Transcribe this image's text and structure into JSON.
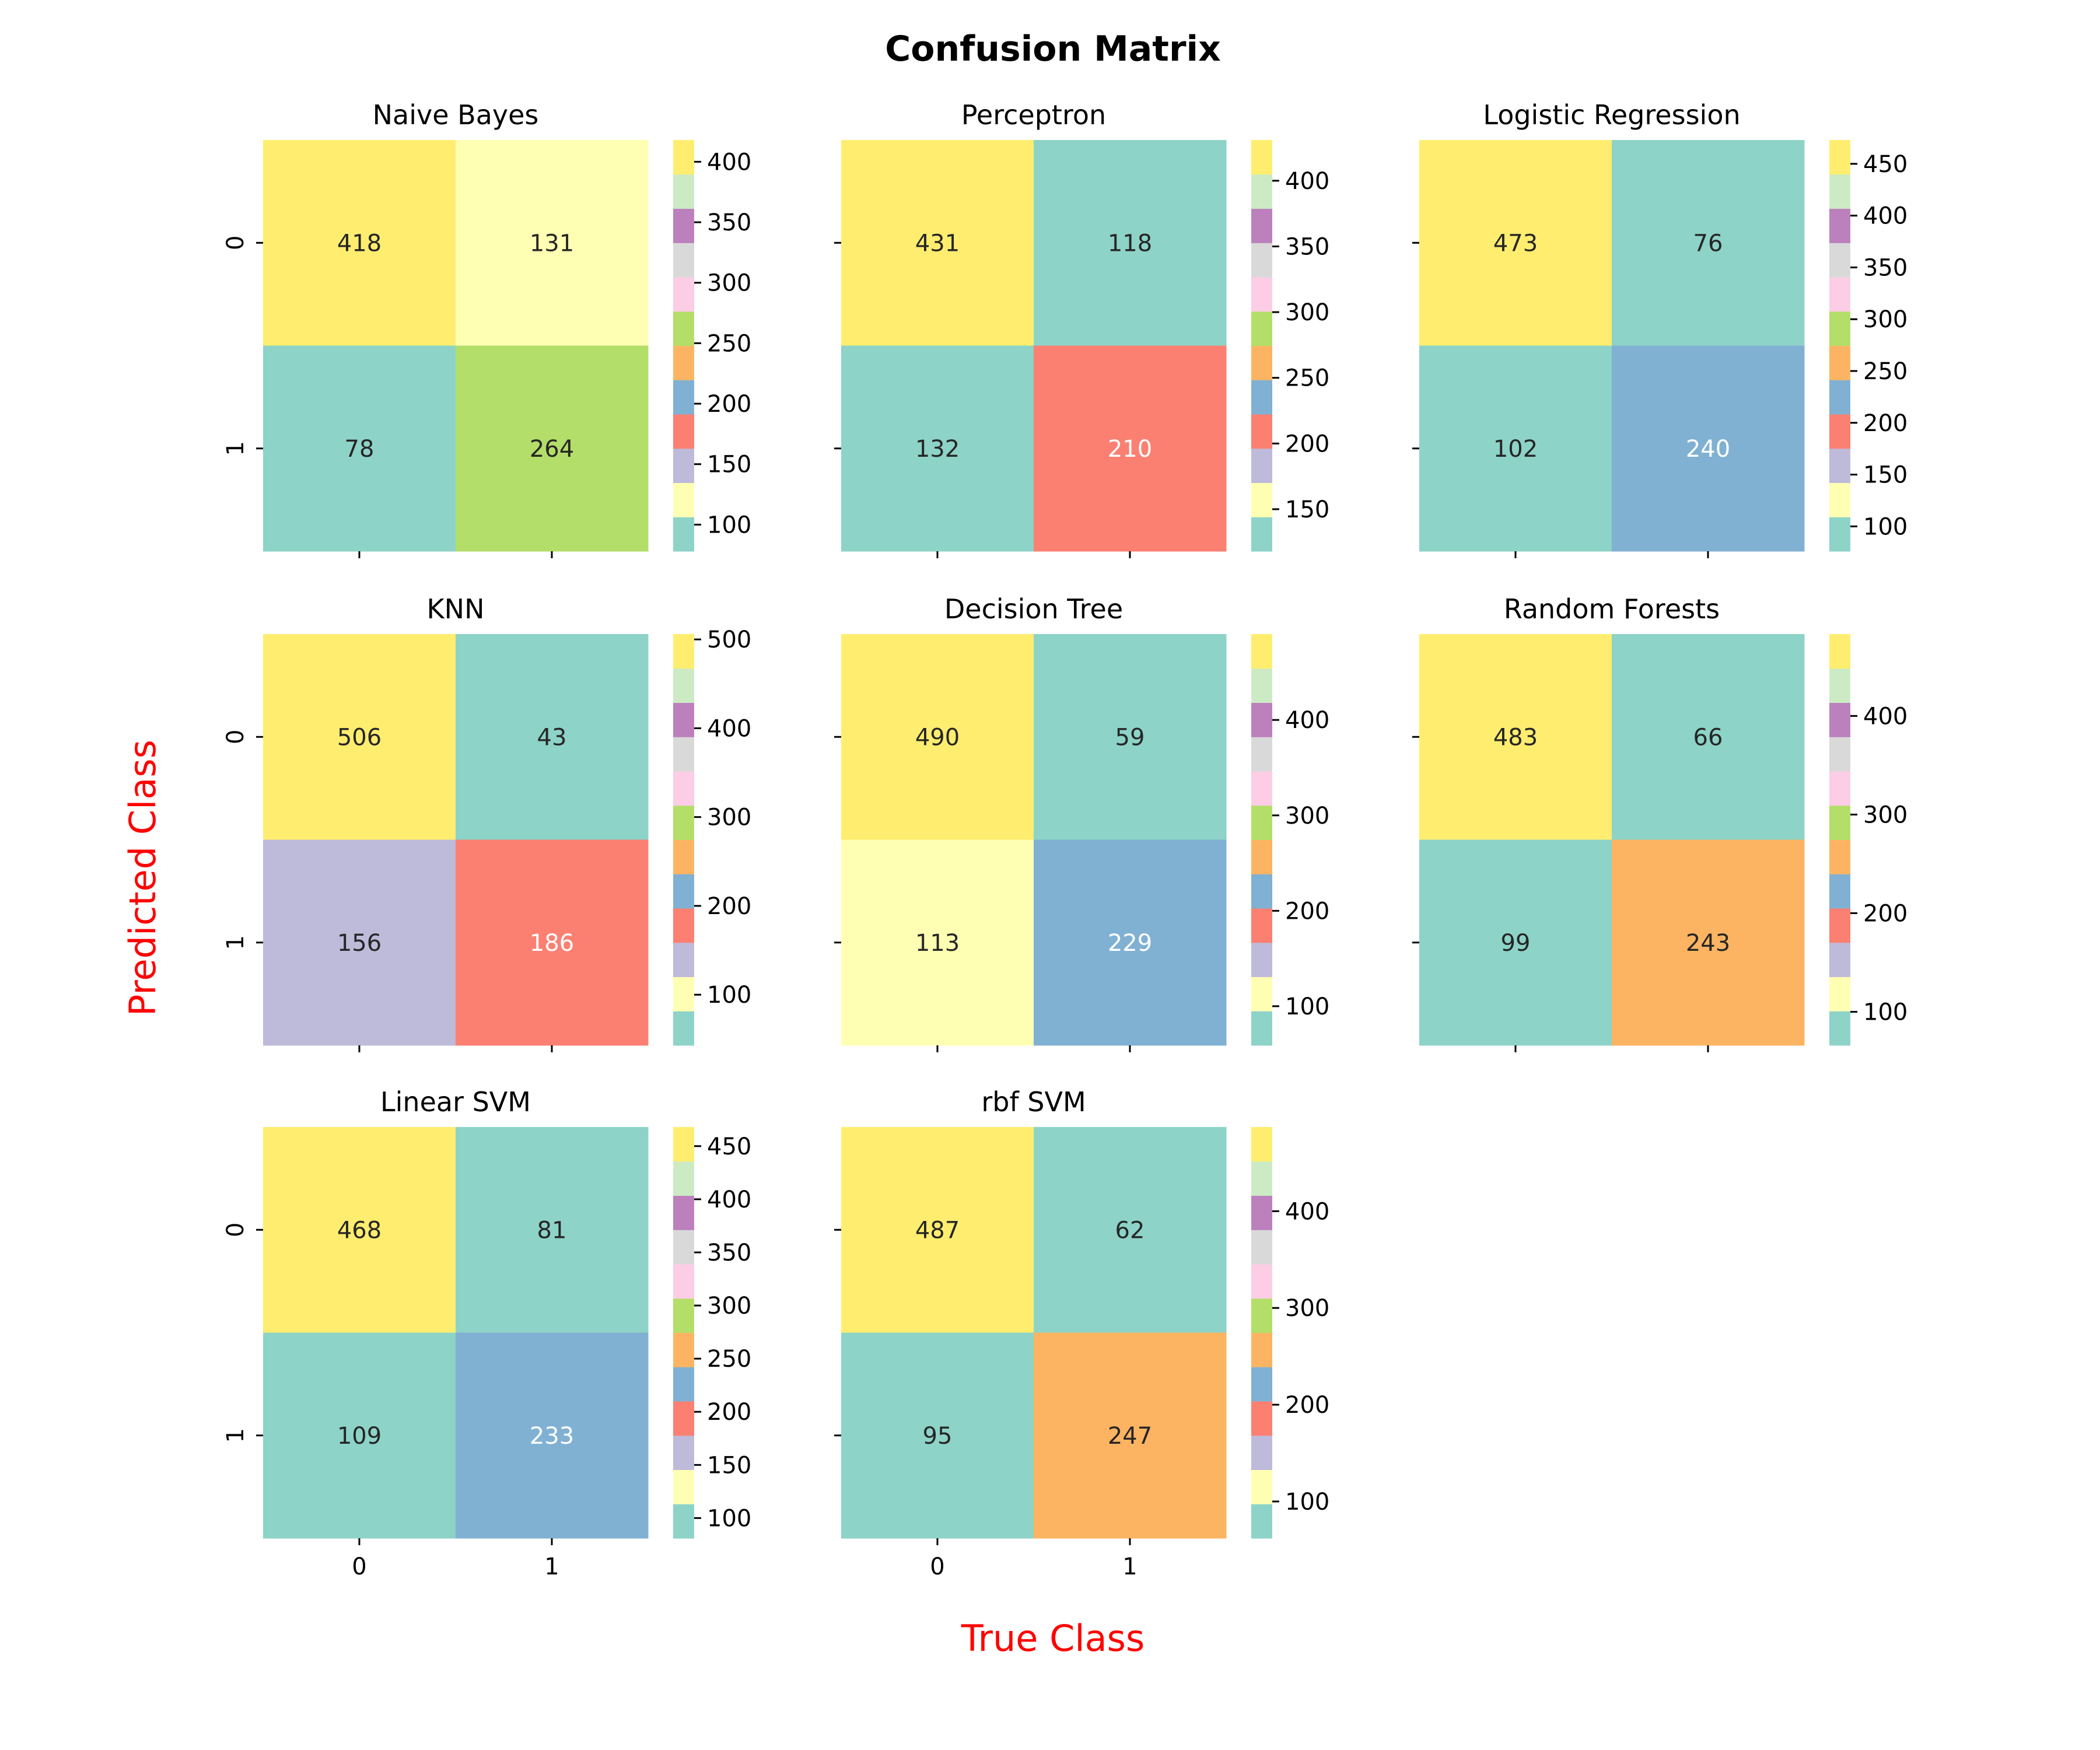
{
  "figure": {
    "title": "Confusion Matrix",
    "xlabel": "True Class",
    "ylabel": "Predicted Class",
    "label_color": "#ff0000",
    "palette": [
      "#8dd3c7",
      "#ffffb3",
      "#bebada",
      "#fb8072",
      "#80b1d3",
      "#fdb462",
      "#b3de69",
      "#fccde5",
      "#d9d9d9",
      "#bc80bd",
      "#ccebc5",
      "#ffed6f"
    ],
    "colormap": "Set3",
    "dark_text_color": "#262626",
    "light_text_color": "#ffffff"
  },
  "chart_data": [
    {
      "type": "heatmap",
      "title": "Naive Bayes",
      "row_labels": [
        "0",
        "1"
      ],
      "col_labels": [
        "0",
        "1"
      ],
      "values": [
        [
          418,
          131
        ],
        [
          78,
          264
        ]
      ],
      "cell_colors": [
        [
          "#ffed6f",
          "#ffffb3"
        ],
        [
          "#8dd3c7",
          "#b3de69"
        ]
      ],
      "text_colors": [
        [
          "dark",
          "dark"
        ],
        [
          "dark",
          "dark"
        ]
      ],
      "vmin": 78,
      "vmax": 418,
      "colorbar_ticks": [
        100,
        150,
        200,
        250,
        300,
        350,
        400
      ]
    },
    {
      "type": "heatmap",
      "title": "Perceptron",
      "row_labels": [
        "0",
        "1"
      ],
      "col_labels": [
        "0",
        "1"
      ],
      "values": [
        [
          431,
          118
        ],
        [
          132,
          210
        ]
      ],
      "cell_colors": [
        [
          "#ffed6f",
          "#8dd3c7"
        ],
        [
          "#8dd3c7",
          "#fb8072"
        ]
      ],
      "text_colors": [
        [
          "dark",
          "dark"
        ],
        [
          "dark",
          "light"
        ]
      ],
      "vmin": 118,
      "vmax": 431,
      "colorbar_ticks": [
        150,
        200,
        250,
        300,
        350,
        400
      ]
    },
    {
      "type": "heatmap",
      "title": "Logistic Regression",
      "row_labels": [
        "0",
        "1"
      ],
      "col_labels": [
        "0",
        "1"
      ],
      "values": [
        [
          473,
          76
        ],
        [
          102,
          240
        ]
      ],
      "cell_colors": [
        [
          "#ffed6f",
          "#8dd3c7"
        ],
        [
          "#8dd3c7",
          "#80b1d3"
        ]
      ],
      "text_colors": [
        [
          "dark",
          "dark"
        ],
        [
          "dark",
          "light"
        ]
      ],
      "vmin": 76,
      "vmax": 473,
      "colorbar_ticks": [
        100,
        150,
        200,
        250,
        300,
        350,
        400,
        450
      ]
    },
    {
      "type": "heatmap",
      "title": "KNN",
      "row_labels": [
        "0",
        "1"
      ],
      "col_labels": [
        "0",
        "1"
      ],
      "values": [
        [
          506,
          43
        ],
        [
          156,
          186
        ]
      ],
      "cell_colors": [
        [
          "#ffed6f",
          "#8dd3c7"
        ],
        [
          "#bebada",
          "#fb8072"
        ]
      ],
      "text_colors": [
        [
          "dark",
          "dark"
        ],
        [
          "dark",
          "light"
        ]
      ],
      "vmin": 43,
      "vmax": 506,
      "colorbar_ticks": [
        100,
        200,
        300,
        400,
        500
      ]
    },
    {
      "type": "heatmap",
      "title": "Decision Tree",
      "row_labels": [
        "0",
        "1"
      ],
      "col_labels": [
        "0",
        "1"
      ],
      "values": [
        [
          490,
          59
        ],
        [
          113,
          229
        ]
      ],
      "cell_colors": [
        [
          "#ffed6f",
          "#8dd3c7"
        ],
        [
          "#ffffb3",
          "#80b1d3"
        ]
      ],
      "text_colors": [
        [
          "dark",
          "dark"
        ],
        [
          "dark",
          "light"
        ]
      ],
      "vmin": 59,
      "vmax": 490,
      "colorbar_ticks": [
        100,
        200,
        300,
        400
      ]
    },
    {
      "type": "heatmap",
      "title": "Random Forests",
      "row_labels": [
        "0",
        "1"
      ],
      "col_labels": [
        "0",
        "1"
      ],
      "values": [
        [
          483,
          66
        ],
        [
          99,
          243
        ]
      ],
      "cell_colors": [
        [
          "#ffed6f",
          "#8dd3c7"
        ],
        [
          "#8dd3c7",
          "#fdb462"
        ]
      ],
      "text_colors": [
        [
          "dark",
          "dark"
        ],
        [
          "dark",
          "dark"
        ]
      ],
      "vmin": 66,
      "vmax": 483,
      "colorbar_ticks": [
        100,
        200,
        300,
        400
      ]
    },
    {
      "type": "heatmap",
      "title": "Linear SVM",
      "row_labels": [
        "0",
        "1"
      ],
      "col_labels": [
        "0",
        "1"
      ],
      "values": [
        [
          468,
          81
        ],
        [
          109,
          233
        ]
      ],
      "cell_colors": [
        [
          "#ffed6f",
          "#8dd3c7"
        ],
        [
          "#8dd3c7",
          "#80b1d3"
        ]
      ],
      "text_colors": [
        [
          "dark",
          "dark"
        ],
        [
          "dark",
          "light"
        ]
      ],
      "vmin": 81,
      "vmax": 468,
      "colorbar_ticks": [
        100,
        150,
        200,
        250,
        300,
        350,
        400,
        450
      ]
    },
    {
      "type": "heatmap",
      "title": "rbf SVM",
      "row_labels": [
        "0",
        "1"
      ],
      "col_labels": [
        "0",
        "1"
      ],
      "values": [
        [
          487,
          62
        ],
        [
          95,
          247
        ]
      ],
      "cell_colors": [
        [
          "#ffed6f",
          "#8dd3c7"
        ],
        [
          "#8dd3c7",
          "#fdb462"
        ]
      ],
      "text_colors": [
        [
          "dark",
          "dark"
        ],
        [
          "dark",
          "dark"
        ]
      ],
      "vmin": 62,
      "vmax": 487,
      "colorbar_ticks": [
        100,
        200,
        300,
        400
      ]
    }
  ]
}
